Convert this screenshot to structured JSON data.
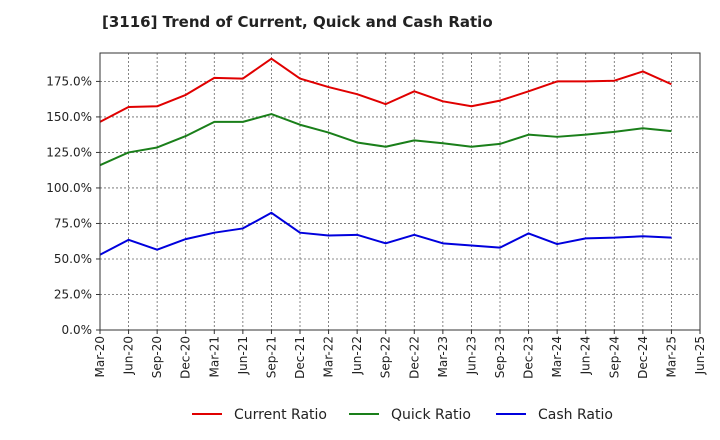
{
  "chart_data": {
    "type": "line",
    "title": "[3116]  Trend of Current, Quick and Cash Ratio",
    "xlabel": "",
    "ylabel": "",
    "ylim": [
      0,
      195
    ],
    "y_ticks": [
      0,
      25,
      50,
      75,
      100,
      125,
      150,
      175
    ],
    "y_tick_labels": [
      "0.0%",
      "25.0%",
      "50.0%",
      "75.0%",
      "100.0%",
      "125.0%",
      "150.0%",
      "175.0%"
    ],
    "x_tick_labels": [
      "Mar-20",
      "Jun-20",
      "Sep-20",
      "Dec-20",
      "Mar-21",
      "Jun-21",
      "Sep-21",
      "Dec-21",
      "Mar-22",
      "Jun-22",
      "Sep-22",
      "Dec-22",
      "Mar-23",
      "Jun-23",
      "Sep-23",
      "Dec-23",
      "Mar-24",
      "Jun-24",
      "Sep-24",
      "Dec-24",
      "Mar-25",
      "Jun-25"
    ],
    "grid": true,
    "legend_position": "bottom",
    "series": [
      {
        "name": "Current Ratio",
        "color": "#e00000",
        "values": [
          146.5,
          157,
          157.5,
          165.5,
          177.5,
          177,
          191,
          177,
          171,
          166,
          159,
          168,
          161,
          157.5,
          161.5,
          168,
          175,
          175,
          175.5,
          182,
          173
        ]
      },
      {
        "name": "Quick Ratio",
        "color": "#1a7f1a",
        "values": [
          116,
          125,
          128.5,
          136.5,
          146.5,
          146.5,
          152,
          144.5,
          139,
          132,
          129,
          133.5,
          131.5,
          129,
          131,
          137.5,
          136,
          137.5,
          139.5,
          142,
          140
        ]
      },
      {
        "name": "Cash Ratio",
        "color": "#0000dd",
        "values": [
          53,
          63.5,
          56.5,
          64,
          68.5,
          71.5,
          82.5,
          68.5,
          66.5,
          67,
          61,
          67,
          61,
          59.5,
          58,
          68,
          60.5,
          64.5,
          65,
          66,
          65
        ]
      }
    ]
  }
}
